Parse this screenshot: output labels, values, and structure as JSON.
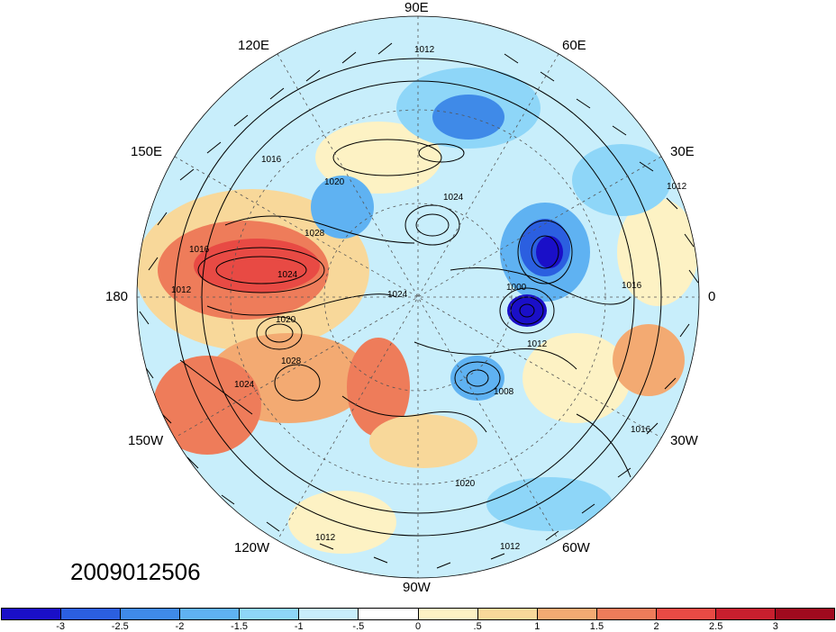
{
  "map": {
    "projection": "north-polar-stereographic",
    "longitude_labels": [
      "90E",
      "60E",
      "30E",
      "0",
      "30W",
      "60W",
      "90W",
      "120W",
      "150W",
      "180",
      "150E",
      "120E"
    ],
    "contour_labels": [
      "1012",
      "1016",
      "1020",
      "1024",
      "1028",
      "1028",
      "1024",
      "1020",
      "1016",
      "1012",
      "1012",
      "1008",
      "1000",
      "1024",
      "1012",
      "1016",
      "1020",
      "1024",
      "1012",
      "1016",
      "1012"
    ],
    "wind_barbs": true
  },
  "datestamp": "2009012506",
  "colorbar": {
    "colors": [
      "#1a0fc8",
      "#2b5fe0",
      "#3f8ae8",
      "#5fb2f2",
      "#8ed6f8",
      "#c8eefb",
      "#ffffff",
      "#fdf2c4",
      "#f8d89a",
      "#f3aa72",
      "#ee7c5a",
      "#e84a44",
      "#c81f2e",
      "#a00a1e"
    ],
    "tick_labels": [
      "-3",
      "-2.5",
      "-2",
      "-1.5",
      "-1",
      "-.5",
      "0",
      ".5",
      "1",
      "1.5",
      "2",
      "2.5",
      "3"
    ]
  },
  "colors": {
    "coastline": "#888888",
    "contour": "#000000"
  }
}
